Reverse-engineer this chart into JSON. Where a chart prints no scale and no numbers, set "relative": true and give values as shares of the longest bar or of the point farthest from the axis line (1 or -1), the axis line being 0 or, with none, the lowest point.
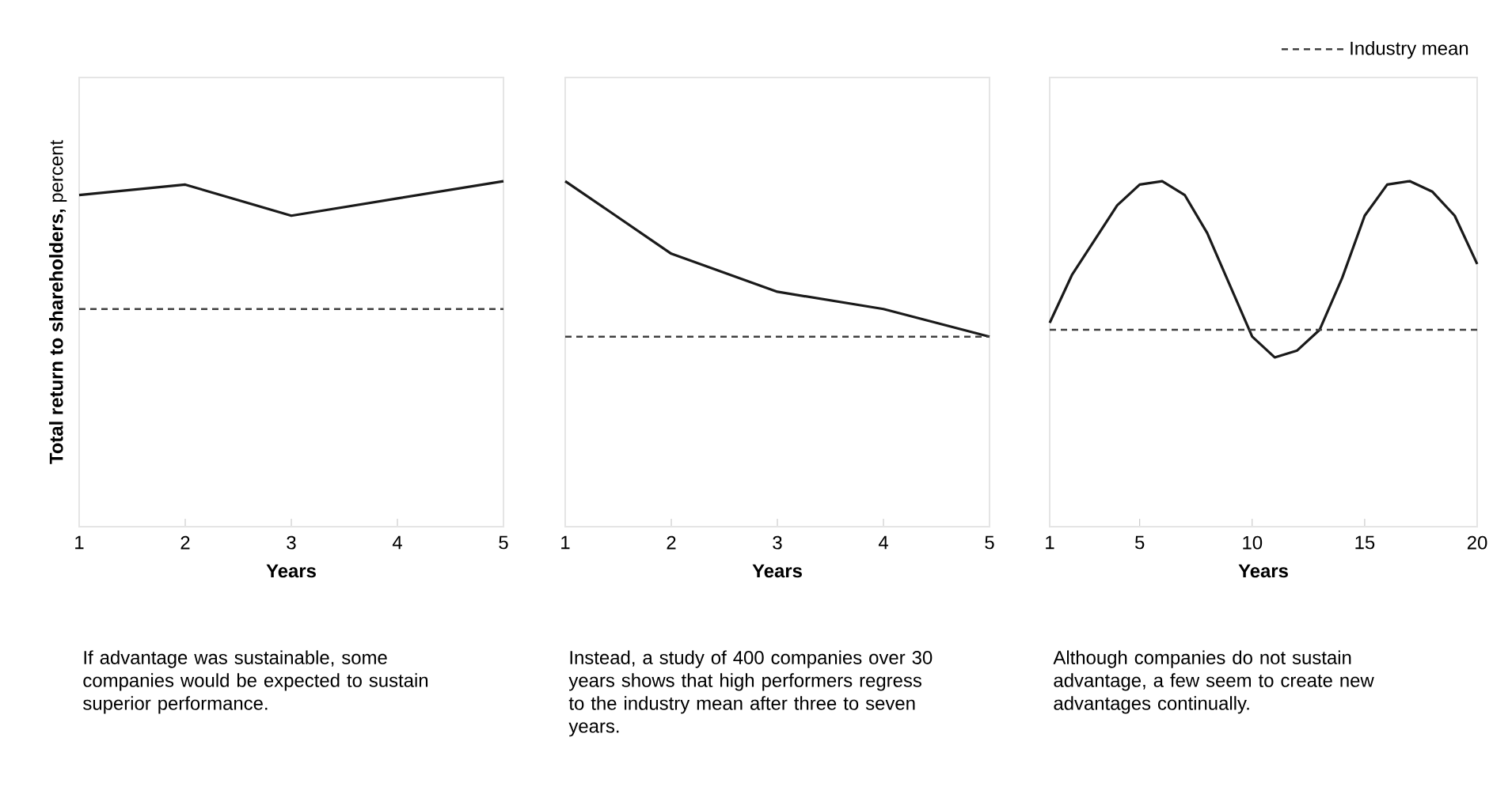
{
  "chart_data": [
    {
      "type": "line",
      "relative": true,
      "ylabel": "**Total return to shareholders,** percent",
      "xlabel": "Years",
      "x": [
        1,
        2,
        3,
        4,
        5
      ],
      "xlim": [
        1,
        5
      ],
      "xticks": [
        1,
        2,
        3,
        4,
        5
      ],
      "series": [
        {
          "color": "#1a1a1a",
          "values": [
            0.96,
            0.99,
            0.9,
            0.95,
            1
          ]
        }
      ],
      "ref_lines": [
        {
          "axis": "y",
          "value": 0.63,
          "color": "#404040",
          "line_style": "dashed"
        }
      ],
      "annotations": [
        "If advantage was sustainable, some companies would be expected to sustain superior performance."
      ]
    },
    {
      "type": "line",
      "relative": true,
      "xlabel": "Years",
      "x": [
        1,
        2,
        3,
        4,
        5
      ],
      "xlim": [
        1,
        5
      ],
      "xticks": [
        1,
        2,
        3,
        4,
        5
      ],
      "series": [
        {
          "color": "#1a1a1a",
          "values": [
            1,
            0.79,
            0.68,
            0.63,
            0.55
          ]
        }
      ],
      "ref_lines": [
        {
          "axis": "y",
          "value": 0.55,
          "color": "#404040",
          "line_style": "dashed"
        }
      ],
      "annotations": [
        "Instead, a study of 400 companies over 30 years shows that high performers regress to the industry mean after three to seven years."
      ]
    },
    {
      "type": "line",
      "relative": true,
      "xlabel": "Years",
      "x": [
        1,
        2,
        3,
        4,
        5,
        6,
        7,
        8,
        9,
        10,
        11,
        12,
        13,
        14,
        15,
        16,
        17,
        18,
        19,
        20
      ],
      "xlim": [
        1,
        20
      ],
      "xticks": [
        1,
        5,
        10,
        15,
        20
      ],
      "legend": "top right",
      "series": [
        {
          "color": "#1a1a1a",
          "values": [
            0.59,
            0.73,
            0.83,
            0.93,
            0.99,
            1,
            0.96,
            0.85,
            0.7,
            0.55,
            0.49,
            0.51,
            0.57,
            0.72,
            0.9,
            0.99,
            1,
            0.97,
            0.9,
            0.76
          ]
        }
      ],
      "ref_lines": [
        {
          "axis": "y",
          "value": 0.57,
          "color": "#404040",
          "line_style": "dashed",
          "label": "Industry mean"
        }
      ],
      "annotations": [
        "Although companies do not sustain advantage, a few seem to create new advantages continually."
      ]
    }
  ]
}
